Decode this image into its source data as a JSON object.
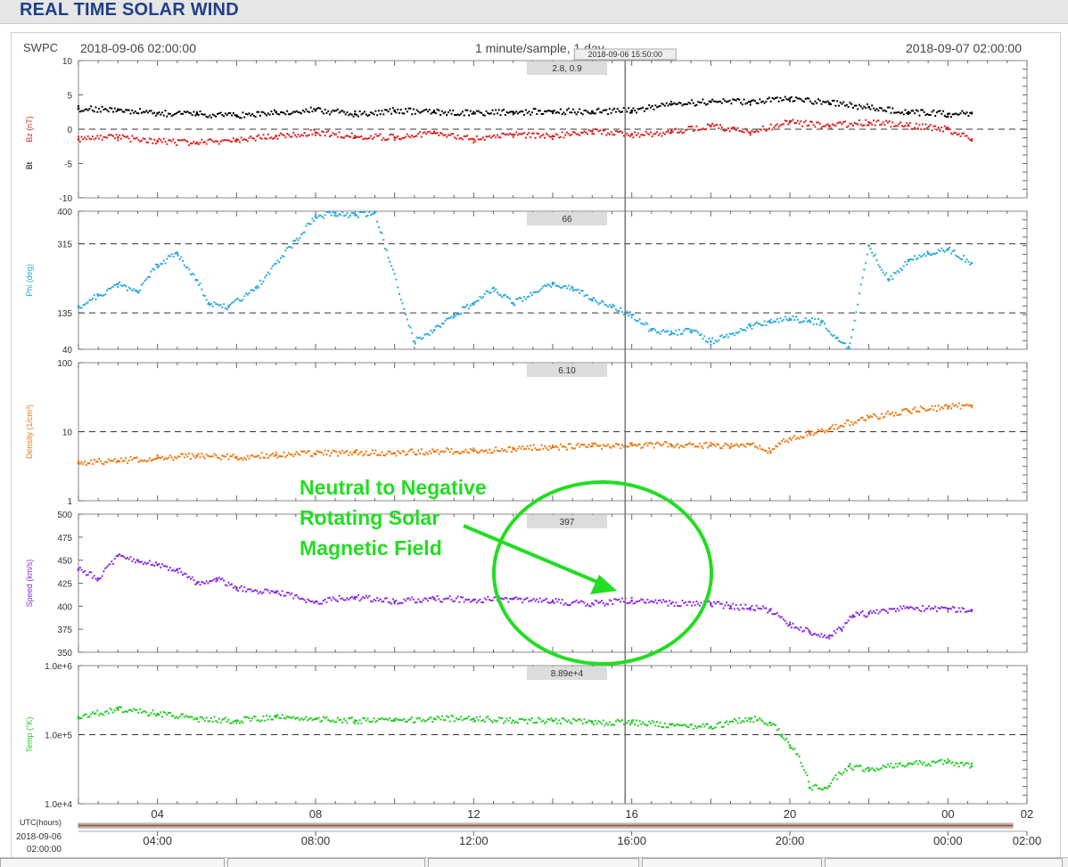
{
  "page": {
    "title": "REAL TIME SOLAR WIND"
  },
  "header": {
    "source": "SWPC",
    "start_time": "2018-09-06 02:00:00",
    "end_time": "2018-09-07 02:00:00",
    "cadence": "1 minute/sample, 1 day"
  },
  "cursor": {
    "time_label": "2018-09-06 15:50:00",
    "hours": 13.833
  },
  "annotation": {
    "lines": [
      "Neutral to Negative",
      "Rotating Solar",
      "Magnetic Field"
    ],
    "color": "#22dd22"
  },
  "time_axis": {
    "label": "UTC(hours)",
    "date_label": "2018-09-06",
    "time_label": "02:00:00",
    "ticks_top": [
      {
        "h": 2,
        "label": "04"
      },
      {
        "h": 6,
        "label": "08"
      },
      {
        "h": 10,
        "label": "12"
      },
      {
        "h": 14,
        "label": "16"
      },
      {
        "h": 18,
        "label": "20"
      },
      {
        "h": 22,
        "label": "00"
      },
      {
        "h": 24,
        "label": "02"
      }
    ],
    "ticks_bottom": [
      {
        "h": 2,
        "label": "04:00"
      },
      {
        "h": 6,
        "label": "08:00"
      },
      {
        "h": 10,
        "label": "12:00"
      },
      {
        "h": 14,
        "label": "16:00"
      },
      {
        "h": 18,
        "label": "20:00"
      },
      {
        "h": 22,
        "label": "00:00"
      },
      {
        "h": 24,
        "label": "02:00"
      }
    ]
  },
  "chart_data": [
    {
      "type": "line",
      "ylabel": "Bz (nT)",
      "ylabel2": "Bt",
      "ylim": [
        -10,
        10
      ],
      "scale": "linear",
      "yticks": [
        "10",
        "5",
        "0",
        "-5",
        "-10"
      ],
      "ytick_values": [
        10,
        5,
        0,
        -5,
        -10
      ],
      "dashed": [
        0
      ],
      "readout": "2.8, 0.9",
      "series": [
        {
          "color": "#000000",
          "x": [
            0,
            1,
            2,
            3,
            4,
            5,
            6,
            7,
            8,
            9,
            10,
            11,
            12,
            13,
            14,
            15,
            16,
            17,
            18,
            19,
            20,
            21,
            22,
            22.6
          ],
          "y": [
            3,
            2.8,
            2.3,
            2.2,
            2,
            2.5,
            2.8,
            2.2,
            2.7,
            2.5,
            2.3,
            2.5,
            2.6,
            2.6,
            2.7,
            3.6,
            4,
            4,
            4.5,
            3.8,
            3.2,
            2.5,
            2.2,
            2.3
          ]
        },
        {
          "color": "#dd2222",
          "x": [
            0,
            1,
            2,
            3,
            4,
            5,
            6,
            7,
            8,
            9,
            10,
            11,
            12,
            13,
            14,
            15,
            16,
            17,
            18,
            19,
            20,
            21,
            22,
            22.6
          ],
          "y": [
            -1.5,
            -1.2,
            -1.8,
            -2,
            -1.5,
            -1,
            -0.5,
            -1,
            -1.2,
            -0.5,
            -1.5,
            -0.8,
            -1,
            -0.3,
            -0.8,
            -0.5,
            0.5,
            -0.5,
            1,
            0.5,
            1,
            0.5,
            0,
            -1.5
          ]
        }
      ]
    },
    {
      "type": "scatter",
      "ylabel": "Phi (deg)",
      "ylim": [
        40,
        400
      ],
      "scale": "linear",
      "yticks": [
        "400",
        "315",
        "135",
        "40"
      ],
      "ytick_values": [
        400,
        315,
        135,
        40
      ],
      "dashed": [
        315,
        135
      ],
      "readout": "66",
      "series": [
        {
          "color": "#29a9dd",
          "x": [
            0,
            0.5,
            1,
            1.5,
            2,
            2.5,
            3,
            3.3,
            3.8,
            4.5,
            6,
            6.5,
            7,
            7.5,
            8.5,
            9,
            9.5,
            10,
            10.5,
            11,
            12,
            12.5,
            13,
            13.5,
            14,
            14.5,
            15,
            15.5,
            16,
            17,
            17.5,
            18,
            18.5,
            18.8,
            19.2,
            19.5,
            20,
            20.5,
            21,
            21.5,
            22,
            22.6
          ],
          "y": [
            150,
            180,
            210,
            190,
            260,
            290,
            220,
            160,
            150,
            200,
            385,
            395,
            390,
            398,
            60,
            90,
            130,
            160,
            200,
            160,
            210,
            200,
            170,
            150,
            130,
            90,
            80,
            90,
            60,
            100,
            110,
            120,
            115,
            110,
            70,
            40,
            310,
            220,
            270,
            290,
            300,
            265
          ]
        }
      ]
    },
    {
      "type": "line",
      "ylabel": "Density (1/cm³)",
      "ylim": [
        1,
        100
      ],
      "scale": "log",
      "yticks": [
        "100",
        "10",
        "1"
      ],
      "ytick_values": [
        100,
        10,
        1
      ],
      "dashed": [
        10
      ],
      "readout": "6.10",
      "series": [
        {
          "color": "#ee7711",
          "x": [
            0,
            1,
            2,
            3,
            4,
            5,
            6,
            7,
            8,
            9,
            10,
            11,
            12,
            13,
            14,
            15,
            16,
            16.5,
            17,
            17.5,
            18,
            18.5,
            19,
            20,
            21,
            22,
            22.6
          ],
          "y": [
            3.5,
            3.8,
            4.2,
            4.5,
            4.3,
            4.6,
            4.8,
            5,
            4.9,
            5.2,
            5.3,
            5.6,
            6,
            6.2,
            6.4,
            6.5,
            6.3,
            6,
            6.5,
            5.2,
            8,
            9.5,
            11,
            16,
            20,
            23,
            24
          ]
        }
      ]
    },
    {
      "type": "scatter",
      "ylabel": "Speed (km/s)",
      "ylim": [
        350,
        500
      ],
      "scale": "linear",
      "yticks": [
        "500",
        "475",
        "450",
        "425",
        "400",
        "375",
        "350"
      ],
      "ytick_values": [
        500,
        475,
        450,
        425,
        400,
        375,
        350
      ],
      "dashed": [],
      "readout": "397",
      "series": [
        {
          "color": "#8a2be2",
          "x": [
            0,
            0.5,
            1,
            1.5,
            2,
            2.5,
            3,
            3.5,
            4,
            5,
            6,
            7,
            8,
            9,
            10,
            11,
            12,
            13,
            14,
            15,
            16,
            16.5,
            17,
            17.5,
            18,
            18.5,
            19,
            19.3,
            19.6,
            20,
            21,
            22,
            22.6
          ],
          "y": [
            440,
            430,
            455,
            450,
            445,
            440,
            425,
            430,
            420,
            415,
            405,
            410,
            405,
            408,
            407,
            408,
            405,
            403,
            406,
            403,
            403,
            400,
            398,
            396,
            380,
            372,
            368,
            375,
            390,
            392,
            398,
            397,
            396
          ]
        }
      ]
    },
    {
      "type": "scatter",
      "ylabel": "Temp (°K)",
      "ylim": [
        10000,
        1000000
      ],
      "scale": "log",
      "yticks": [
        "1.0e+6",
        "1.0e+5",
        "1.0e+4"
      ],
      "ytick_values": [
        1000000,
        100000,
        10000
      ],
      "dashed": [
        100000
      ],
      "readout": "8.89e+4",
      "series": [
        {
          "color": "#22cc22",
          "x": [
            0,
            1,
            2,
            3,
            4,
            5,
            6,
            7,
            8,
            9,
            10,
            11,
            12,
            13,
            14,
            15,
            16,
            17,
            17.5,
            17.8,
            18,
            18.5,
            19,
            19.5,
            20,
            21,
            22,
            22.6
          ],
          "y": [
            180000,
            230000,
            200000,
            170000,
            160000,
            180000,
            170000,
            160000,
            160000,
            170000,
            170000,
            160000,
            160000,
            150000,
            150000,
            140000,
            130000,
            170000,
            150000,
            100000,
            70000,
            17000,
            18000,
            35000,
            30000,
            38000,
            40000,
            35000
          ]
        }
      ]
    }
  ]
}
